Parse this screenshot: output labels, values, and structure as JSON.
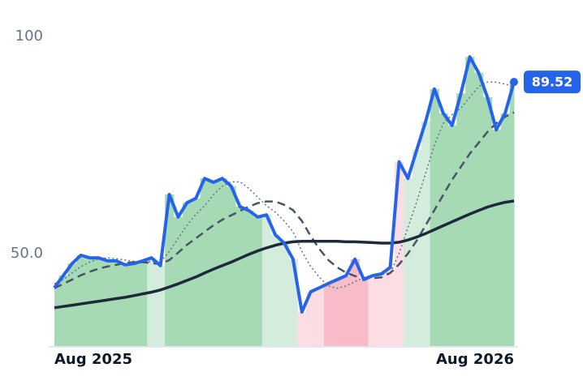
{
  "chart_data": {
    "type": "line",
    "xlim": [
      0,
      52
    ],
    "xticks": [
      {
        "value": 0,
        "label": "Aug 2025"
      },
      {
        "value": 52,
        "label": "Aug 2026"
      }
    ],
    "ylim": [
      28.5,
      100
    ],
    "yticks": [
      100,
      {
        "value": 50,
        "label": "50.0"
      }
    ],
    "zones": [
      {
        "start": 0,
        "end": 10,
        "color": "#a6dab4"
      },
      {
        "start": 11,
        "end": 12,
        "color": "#d3ecdc"
      },
      {
        "start": 13,
        "end": 23,
        "color": "#a6dab4"
      },
      {
        "start": 24,
        "end": 27,
        "color": "#d3ecdc"
      },
      {
        "start": 28,
        "end": 30,
        "color": "#fbdde3"
      },
      {
        "start": 31,
        "end": 35,
        "color": "#f7bcc8"
      },
      {
        "start": 36,
        "end": 39,
        "color": "#fbdde3"
      },
      {
        "start": 40,
        "end": 42,
        "color": "#d3ecdc"
      },
      {
        "start": 43,
        "end": 52,
        "color": "#a6dab4"
      }
    ],
    "series": [
      {
        "color": "#2563eb",
        "style": "solid",
        "width": 4,
        "values": [
          42.1,
          44.9,
          47.7,
          49.6,
          49.0,
          49.0,
          48.3,
          48.3,
          47.4,
          47.7,
          48.3,
          49.0,
          47.2,
          63.6,
          58.4,
          61.7,
          62.7,
          67.3,
          66.4,
          67.3,
          65.5,
          60.8,
          59.9,
          58.4,
          58.9,
          54.3,
          52.4,
          48.7,
          36.5,
          41.2,
          42.1,
          43.1,
          44.0,
          44.9,
          48.7,
          44.0,
          44.9,
          45.3,
          46.8,
          71.1,
          67.3,
          73.9,
          80.4,
          87.9,
          82.3,
          79.5,
          86.9,
          95.3,
          91.6,
          86.0,
          78.5,
          82.3,
          89.52
        ]
      },
      {
        "color": "#1e293b",
        "style": "solid",
        "width": 3.5,
        "values": [
          37.5,
          37.8,
          38.1,
          38.4,
          38.7,
          39.0,
          39.3,
          39.6,
          39.9,
          40.3,
          40.7,
          41.1,
          41.6,
          42.3,
          43.0,
          43.8,
          44.6,
          45.5,
          46.4,
          47.2,
          48.0,
          48.9,
          49.8,
          50.6,
          51.3,
          51.9,
          52.4,
          52.7,
          52.8,
          52.8,
          52.8,
          52.8,
          52.8,
          52.7,
          52.7,
          52.6,
          52.5,
          52.4,
          52.4,
          52.6,
          53.1,
          53.8,
          54.6,
          55.5,
          56.4,
          57.3,
          58.2,
          59.1,
          59.9,
          60.7,
          61.3,
          61.8,
          62.1
        ]
      },
      {
        "color": "#475569",
        "style": "dashed",
        "width": 2.5,
        "values": [
          42.0,
          43.0,
          44.0,
          45.0,
          45.8,
          46.5,
          47.0,
          47.4,
          47.8,
          48.0,
          48.0,
          47.8,
          47.5,
          48.5,
          50.2,
          52.0,
          53.5,
          55.0,
          56.5,
          57.8,
          58.8,
          59.8,
          60.8,
          61.6,
          62.0,
          62.0,
          61.2,
          60.0,
          57.5,
          54.0,
          51.0,
          48.5,
          46.8,
          45.6,
          44.8,
          44.4,
          44.3,
          44.5,
          45.5,
          47.5,
          50.0,
          53.0,
          56.5,
          60.0,
          63.5,
          67.0,
          70.0,
          73.0,
          75.5,
          78.0,
          80.0,
          81.5,
          82.5
        ]
      },
      {
        "color": "#64748b",
        "style": "dotted",
        "width": 1.5,
        "values": [
          43.0,
          44.0,
          45.5,
          47.0,
          48.0,
          48.8,
          49.0,
          48.8,
          48.5,
          48.2,
          48.0,
          48.2,
          48.0,
          50.5,
          53.5,
          56.5,
          59.0,
          61.0,
          63.5,
          65.5,
          66.5,
          66.5,
          65.0,
          63.0,
          61.0,
          59.5,
          57.5,
          55.0,
          50.5,
          47.0,
          44.5,
          42.5,
          42.0,
          42.5,
          43.5,
          44.5,
          45.0,
          45.2,
          45.5,
          50.0,
          56.0,
          62.0,
          68.5,
          75.0,
          80.0,
          82.0,
          83.5,
          86.0,
          88.5,
          89.5,
          89.5,
          89.0,
          88.5
        ]
      }
    ]
  }
}
